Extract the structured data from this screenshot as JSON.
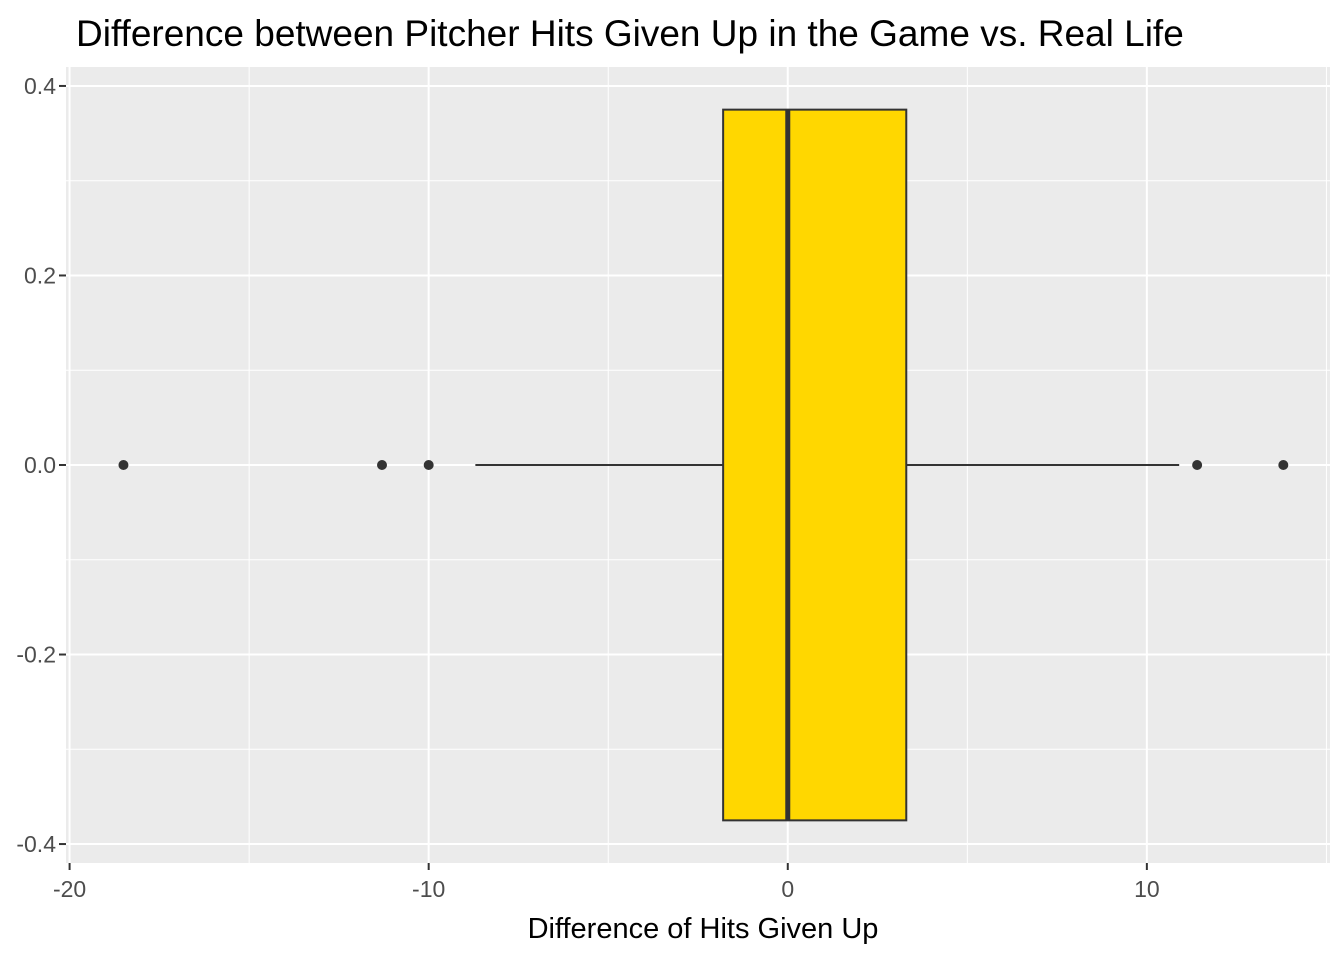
{
  "chart_data": {
    "type": "boxplot",
    "title": "Difference between Pitcher Hits Given Up in the Game vs. Real Life",
    "xlabel": "Difference of Hits Given Up",
    "ylabel": "",
    "xlim": [
      -20.1,
      15.1
    ],
    "ylim": [
      -0.42,
      0.42
    ],
    "x_major_ticks": [
      -20,
      -10,
      0,
      10
    ],
    "x_minor_ticks": [
      -15,
      -5,
      5,
      15
    ],
    "y_major_ticks": [
      -0.4,
      -0.2,
      0.0,
      0.2,
      0.4
    ],
    "y_minor_ticks": [
      -0.3,
      -0.1,
      0.1,
      0.3
    ],
    "x_tick_labels": [
      "-20",
      "-10",
      "0",
      "10"
    ],
    "y_tick_labels": [
      "-0.4",
      "-0.2",
      "0.0",
      "0.2",
      "0.4"
    ],
    "box": {
      "q1": -1.8,
      "median": 0,
      "q3": 3.3,
      "whisker_low": -8.7,
      "whisker_high": 10.9,
      "y_center": 0,
      "half_height": 0.375
    },
    "outliers": [
      -18.5,
      -11.3,
      -10.0,
      11.4,
      13.8
    ],
    "colors": {
      "box_fill": "#FFD700",
      "box_stroke": "#333333",
      "panel_bg": "#EBEBEB",
      "grid": "#FFFFFF",
      "point": "#333333"
    },
    "grid": true
  }
}
